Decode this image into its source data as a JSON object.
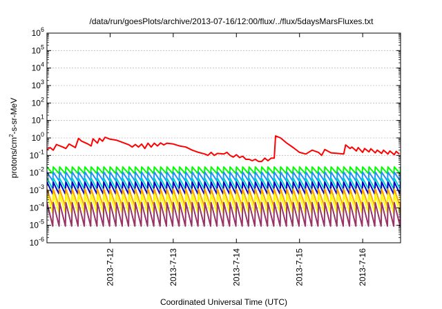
{
  "chart_data": {
    "type": "line",
    "title": "/data/run/goesPlots/archive/2013-07-16/12:00/flux/../flux/5daysMarsFluxes.txt",
    "xlabel": "Coordinated Universal Time (UTC)",
    "ylabel_pre": "protons/cm",
    "ylabel_sup": "2",
    "ylabel_post": "-s-sr-MeV",
    "yscale": "log",
    "ylim_exp": [
      -6,
      6
    ],
    "y_ticks": [
      {
        "base": "10",
        "exp": "-6",
        "e": -6
      },
      {
        "base": "10",
        "exp": "-5",
        "e": -5
      },
      {
        "base": "10",
        "exp": "-4",
        "e": -4
      },
      {
        "base": "10",
        "exp": "-3",
        "e": -3
      },
      {
        "base": "10",
        "exp": "-2",
        "e": -2
      },
      {
        "base": "10",
        "exp": "-1",
        "e": -1
      },
      {
        "base": "10",
        "exp": "0",
        "e": 0
      },
      {
        "base": "10",
        "exp": "1",
        "e": 1
      },
      {
        "base": "10",
        "exp": "2",
        "e": 2
      },
      {
        "base": "10",
        "exp": "3",
        "e": 3
      },
      {
        "base": "10",
        "exp": "4",
        "e": 4
      },
      {
        "base": "10",
        "exp": "5",
        "e": 5
      },
      {
        "base": "10",
        "exp": "6",
        "e": 6
      }
    ],
    "xlim_days": [
      11.0,
      16.6
    ],
    "x_ticks": [
      {
        "label": "2013-7-12",
        "day": 12
      },
      {
        "label": "2013-7-13",
        "day": 13
      },
      {
        "label": "2013-7-14",
        "day": 14
      },
      {
        "label": "2013-7-15",
        "day": 15
      },
      {
        "label": "2013-7-16",
        "day": 16
      }
    ],
    "grid": "horizontal-major",
    "series": [
      {
        "color": "#ff0000",
        "kind": "smooth",
        "points": [
          [
            11.0,
            0.22
          ],
          [
            11.05,
            0.28
          ],
          [
            11.1,
            0.2
          ],
          [
            11.15,
            0.42
          ],
          [
            11.25,
            0.3
          ],
          [
            11.3,
            0.25
          ],
          [
            11.35,
            0.45
          ],
          [
            11.45,
            0.28
          ],
          [
            11.5,
            0.95
          ],
          [
            11.55,
            0.65
          ],
          [
            11.65,
            0.45
          ],
          [
            11.7,
            0.35
          ],
          [
            11.73,
            0.9
          ],
          [
            11.8,
            0.5
          ],
          [
            11.83,
            0.95
          ],
          [
            11.88,
            0.65
          ],
          [
            11.92,
            1.1
          ],
          [
            12.0,
            0.85
          ],
          [
            12.1,
            0.75
          ],
          [
            12.2,
            0.55
          ],
          [
            12.3,
            0.4
          ],
          [
            12.35,
            0.3
          ],
          [
            12.4,
            0.42
          ],
          [
            12.45,
            0.3
          ],
          [
            12.5,
            0.45
          ],
          [
            12.55,
            0.25
          ],
          [
            12.6,
            0.5
          ],
          [
            12.65,
            0.3
          ],
          [
            12.7,
            0.5
          ],
          [
            12.75,
            0.35
          ],
          [
            12.8,
            0.52
          ],
          [
            12.85,
            0.4
          ],
          [
            12.9,
            0.5
          ],
          [
            13.0,
            0.45
          ],
          [
            13.1,
            0.35
          ],
          [
            13.2,
            0.3
          ],
          [
            13.3,
            0.2
          ],
          [
            13.4,
            0.15
          ],
          [
            13.5,
            0.12
          ],
          [
            13.55,
            0.1
          ],
          [
            13.6,
            0.15
          ],
          [
            13.65,
            0.1
          ],
          [
            13.7,
            0.13
          ],
          [
            13.8,
            0.12
          ],
          [
            13.85,
            0.15
          ],
          [
            13.9,
            0.1
          ],
          [
            13.95,
            0.08
          ],
          [
            14.0,
            0.11
          ],
          [
            14.05,
            0.075
          ],
          [
            14.1,
            0.09
          ],
          [
            14.15,
            0.06
          ],
          [
            14.2,
            0.06
          ],
          [
            14.25,
            0.05
          ],
          [
            14.3,
            0.06
          ],
          [
            14.35,
            0.045
          ],
          [
            14.4,
            0.045
          ],
          [
            14.45,
            0.07
          ],
          [
            14.5,
            0.05
          ],
          [
            14.55,
            0.07
          ],
          [
            14.6,
            0.07
          ],
          [
            14.62,
            1.3
          ],
          [
            14.7,
            1.0
          ],
          [
            14.8,
            0.5
          ],
          [
            14.9,
            0.28
          ],
          [
            15.0,
            0.15
          ],
          [
            15.1,
            0.12
          ],
          [
            15.2,
            0.2
          ],
          [
            15.3,
            0.15
          ],
          [
            15.35,
            0.1
          ],
          [
            15.4,
            0.22
          ],
          [
            15.5,
            0.14
          ],
          [
            15.6,
            0.13
          ],
          [
            15.7,
            0.12
          ],
          [
            15.73,
            0.4
          ],
          [
            15.8,
            0.25
          ],
          [
            15.83,
            0.3
          ],
          [
            15.9,
            0.18
          ],
          [
            15.93,
            0.28
          ],
          [
            16.0,
            0.15
          ],
          [
            16.03,
            0.25
          ],
          [
            16.1,
            0.16
          ],
          [
            16.13,
            0.24
          ],
          [
            16.2,
            0.14
          ],
          [
            16.23,
            0.2
          ],
          [
            16.3,
            0.13
          ],
          [
            16.33,
            0.2
          ],
          [
            16.4,
            0.12
          ],
          [
            16.43,
            0.18
          ],
          [
            16.5,
            0.11
          ],
          [
            16.53,
            0.17
          ],
          [
            16.58,
            0.12
          ]
        ]
      },
      {
        "color": "#00ff00",
        "kind": "saw",
        "period": 0.1,
        "start": 11.0,
        "end": 16.6,
        "peak": 0.022,
        "trough": 0.009
      },
      {
        "color": "#1e90ff",
        "kind": "saw",
        "period": 0.1,
        "start": 11.0,
        "end": 16.6,
        "peak": 0.011,
        "trough": 0.0035
      },
      {
        "color": "#00d0d0",
        "kind": "saw",
        "period": 0.1,
        "start": 11.0,
        "end": 16.6,
        "peak": 0.005,
        "trough": 0.0012
      },
      {
        "color": "#0000cc",
        "kind": "saw",
        "period": 0.1,
        "start": 11.0,
        "end": 16.6,
        "peak": 0.003,
        "trough": 0.0006
      },
      {
        "color": "#ffa500",
        "kind": "saw",
        "period": 0.1,
        "start": 11.0,
        "end": 16.6,
        "peak": 0.0012,
        "trough": 0.00012
      },
      {
        "color": "#ffff00",
        "kind": "saw",
        "period": 0.1,
        "start": 11.0,
        "end": 16.6,
        "peak": 0.0006,
        "trough": 5e-05
      },
      {
        "color": "#993366",
        "kind": "saw",
        "period": 0.1,
        "start": 11.0,
        "end": 16.6,
        "peak": 0.0002,
        "trough": 9e-06
      }
    ]
  }
}
